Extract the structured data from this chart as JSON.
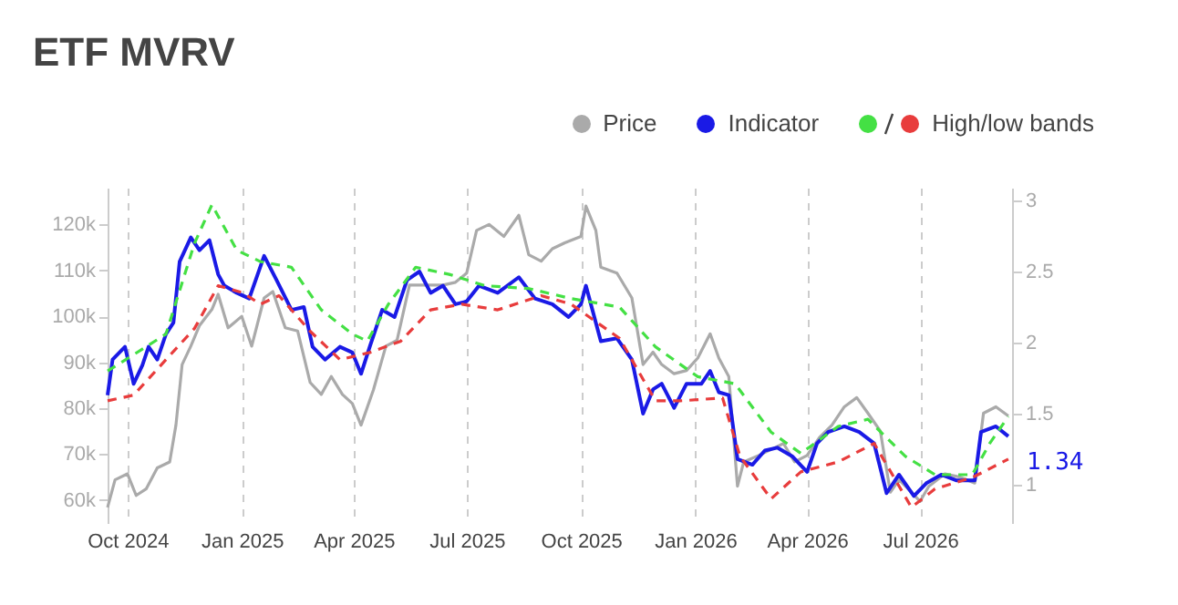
{
  "chart_data": {
    "type": "line",
    "title": "ETF MVRV",
    "xlim": [
      "2024-09-15",
      "2026-09-13"
    ],
    "xticks": [
      {
        "value": "2024-10-01",
        "label": "Oct 2024"
      },
      {
        "value": "2025-01-01",
        "label": "Jan 2025"
      },
      {
        "value": "2025-04-01",
        "label": "Apr 2025"
      },
      {
        "value": "2025-07-01",
        "label": "Jul 2025"
      },
      {
        "value": "2025-10-01",
        "label": "Oct 2025"
      },
      {
        "value": "2026-01-01",
        "label": "Jan 2026"
      },
      {
        "value": "2026-04-01",
        "label": "Apr 2026"
      },
      {
        "value": "2026-07-01",
        "label": "Jul 2026"
      }
    ],
    "ylim": [
      55000,
      128000
    ],
    "yticks": [
      {
        "value": 60000,
        "label": "60k"
      },
      {
        "value": 70000,
        "label": "70k"
      },
      {
        "value": 80000,
        "label": "80k"
      },
      {
        "value": 90000,
        "label": "90k"
      },
      {
        "value": 100000,
        "label": "100k"
      },
      {
        "value": 110000,
        "label": "110k"
      },
      {
        "value": 120000,
        "label": "120k"
      }
    ],
    "y2lim": [
      0.73,
      3.09
    ],
    "y2ticks": [
      1,
      1.5,
      2,
      2.5,
      3
    ],
    "grid": "x",
    "legend": "top right",
    "series": [
      {
        "name": "Price",
        "color": "#aaaaaa",
        "x": [
          "2024-09-15",
          "2024-09-21",
          "2024-10-01",
          "2024-10-08",
          "2024-10-16",
          "2024-10-25",
          "2024-11-04",
          "2024-11-09",
          "2024-11-14",
          "2024-11-21",
          "2024-11-28",
          "2024-12-08",
          "2024-12-13",
          "2024-12-21",
          "2025-01-01",
          "2025-01-09",
          "2025-01-19",
          "2025-01-26",
          "2025-02-05",
          "2025-02-15",
          "2025-02-25",
          "2025-03-06",
          "2025-03-14",
          "2025-03-23",
          "2025-03-31",
          "2025-04-07",
          "2025-04-17",
          "2025-04-27",
          "2025-05-06",
          "2025-05-16",
          "2025-05-28",
          "2025-06-12",
          "2025-06-22",
          "2025-07-01",
          "2025-07-09",
          "2025-07-19",
          "2025-07-31",
          "2025-08-12",
          "2025-08-20",
          "2025-08-30",
          "2025-09-08",
          "2025-09-18",
          "2025-10-01",
          "2025-10-05",
          "2025-10-13",
          "2025-10-17",
          "2025-10-30",
          "2025-11-11",
          "2025-11-20",
          "2025-11-28",
          "2025-12-05",
          "2025-12-15",
          "2025-12-25",
          "2026-01-03",
          "2026-01-13",
          "2026-01-20",
          "2026-01-28",
          "2026-02-04",
          "2026-02-09",
          "2026-02-21",
          "2026-03-03",
          "2026-03-13",
          "2026-03-22",
          "2026-04-01",
          "2026-04-11",
          "2026-04-21",
          "2026-05-01",
          "2026-05-11",
          "2026-05-20",
          "2026-05-30",
          "2026-06-07",
          "2026-06-14",
          "2026-06-24",
          "2026-07-01",
          "2026-07-08",
          "2026-07-21",
          "2026-08-02",
          "2026-08-14",
          "2026-08-21",
          "2026-08-31",
          "2026-09-10"
        ],
        "values": [
          58400,
          64400,
          65700,
          61000,
          62400,
          67000,
          68300,
          76300,
          89500,
          93500,
          98000,
          101500,
          104800,
          97500,
          100000,
          93500,
          104000,
          105400,
          97500,
          96800,
          85600,
          83000,
          86900,
          83000,
          81000,
          76300,
          84000,
          93500,
          94800,
          106800,
          106800,
          106800,
          107400,
          109400,
          118700,
          120000,
          117400,
          122000,
          113400,
          112000,
          114700,
          116000,
          117400,
          124000,
          118700,
          110700,
          109400,
          104000,
          89500,
          92200,
          89500,
          87500,
          88200,
          90900,
          96200,
          90900,
          86900,
          63000,
          68300,
          69700,
          71000,
          72300,
          68300,
          69700,
          73600,
          76300,
          80300,
          82300,
          78900,
          75000,
          61700,
          64400,
          61700,
          59700,
          63000,
          65700,
          65000,
          63700,
          78900,
          80300,
          78300
        ]
      },
      {
        "name": "Indicator",
        "color": "#1a1ae6",
        "axis": "y2",
        "x": [
          "2024-09-15",
          "2024-09-19",
          "2024-09-29",
          "2024-10-06",
          "2024-10-13",
          "2024-10-18",
          "2024-10-25",
          "2024-11-01",
          "2024-11-07",
          "2024-11-12",
          "2024-11-21",
          "2024-11-28",
          "2024-12-06",
          "2024-12-13",
          "2024-12-18",
          "2024-12-28",
          "2025-01-07",
          "2025-01-19",
          "2025-01-29",
          "2025-02-10",
          "2025-02-20",
          "2025-02-27",
          "2025-03-09",
          "2025-03-21",
          "2025-03-31",
          "2025-04-07",
          "2025-04-14",
          "2025-04-24",
          "2025-05-04",
          "2025-05-14",
          "2025-05-24",
          "2025-06-02",
          "2025-06-12",
          "2025-06-22",
          "2025-07-01",
          "2025-07-11",
          "2025-07-26",
          "2025-08-12",
          "2025-08-25",
          "2025-09-08",
          "2025-09-21",
          "2025-10-01",
          "2025-10-05",
          "2025-10-17",
          "2025-10-30",
          "2025-11-11",
          "2025-11-20",
          "2025-11-28",
          "2025-12-05",
          "2025-12-15",
          "2025-12-25",
          "2026-01-06",
          "2026-01-13",
          "2026-01-20",
          "2026-01-28",
          "2026-02-04",
          "2026-02-16",
          "2026-02-26",
          "2026-03-08",
          "2026-03-20",
          "2026-04-01",
          "2026-04-09",
          "2026-04-18",
          "2026-05-01",
          "2026-05-13",
          "2026-05-25",
          "2026-06-04",
          "2026-06-14",
          "2026-06-26",
          "2026-07-06",
          "2026-07-18",
          "2026-07-30",
          "2026-08-14",
          "2026-08-19",
          "2026-08-31",
          "2026-09-10"
        ],
        "values": [
          1.63,
          1.88,
          1.97,
          1.71,
          1.84,
          1.97,
          1.88,
          2.06,
          2.14,
          2.57,
          2.74,
          2.65,
          2.72,
          2.48,
          2.4,
          2.35,
          2.31,
          2.61,
          2.44,
          2.23,
          2.25,
          1.97,
          1.88,
          1.97,
          1.93,
          1.78,
          1.97,
          2.23,
          2.18,
          2.44,
          2.5,
          2.35,
          2.4,
          2.27,
          2.29,
          2.4,
          2.35,
          2.46,
          2.31,
          2.27,
          2.18,
          2.27,
          2.4,
          2.01,
          2.03,
          1.88,
          1.5,
          1.67,
          1.71,
          1.54,
          1.71,
          1.71,
          1.8,
          1.65,
          1.63,
          1.18,
          1.14,
          1.24,
          1.26,
          1.2,
          1.09,
          1.29,
          1.37,
          1.41,
          1.37,
          1.29,
          0.94,
          1.07,
          0.92,
          1.01,
          1.07,
          1.03,
          1.03,
          1.37,
          1.41,
          1.34
        ],
        "value_labels": [
          null,
          null,
          null,
          null,
          null,
          null,
          null,
          null,
          null,
          null,
          null,
          null,
          null,
          null,
          null,
          null,
          null,
          null,
          null,
          null,
          null,
          null,
          null,
          null,
          null,
          null,
          null,
          null,
          null,
          null,
          null,
          null,
          null,
          null,
          null,
          null,
          null,
          null,
          null,
          null,
          null,
          null,
          null,
          null,
          null,
          null,
          null,
          null,
          null,
          null,
          null,
          null,
          null,
          null,
          null,
          null,
          null,
          null,
          null,
          null,
          null,
          null,
          null,
          null,
          null,
          null,
          null,
          null,
          null,
          null,
          null,
          null,
          null,
          null,
          null,
          "1.34"
        ]
      },
      {
        "color": "#44e044",
        "axis": "y2",
        "line_style": "dashed",
        "x": [
          "2024-09-15",
          "2024-10-16",
          "2024-11-01",
          "2024-11-24",
          "2024-12-08",
          "2024-12-28",
          "2025-01-16",
          "2025-02-10",
          "2025-03-06",
          "2025-03-31",
          "2025-04-12",
          "2025-04-29",
          "2025-05-21",
          "2025-06-17",
          "2025-07-16",
          "2025-08-20",
          "2025-09-23",
          "2025-11-01",
          "2025-11-30",
          "2026-01-03",
          "2026-02-02",
          "2026-03-03",
          "2026-03-27",
          "2026-04-26",
          "2026-05-20",
          "2026-06-19",
          "2026-07-13",
          "2026-08-12",
          "2026-08-26",
          "2026-09-10"
        ],
        "values": [
          1.8,
          1.97,
          2.06,
          2.7,
          2.97,
          2.65,
          2.57,
          2.53,
          2.23,
          2.06,
          2.01,
          2.27,
          2.53,
          2.48,
          2.4,
          2.38,
          2.31,
          2.25,
          1.97,
          1.76,
          1.71,
          1.37,
          1.22,
          1.41,
          1.46,
          1.2,
          1.07,
          1.07,
          1.29,
          1.48
        ]
      },
      {
        "name": "High/low bands",
        "color": "#e83c3c",
        "axis": "y2",
        "line_style": "dashed",
        "x": [
          "2024-09-15",
          "2024-10-06",
          "2024-11-01",
          "2024-11-24",
          "2024-12-13",
          "2025-01-02",
          "2025-01-16",
          "2025-01-31",
          "2025-02-25",
          "2025-03-21",
          "2025-04-14",
          "2025-05-09",
          "2025-06-02",
          "2025-06-27",
          "2025-07-26",
          "2025-08-30",
          "2025-09-23",
          "2025-11-01",
          "2025-11-30",
          "2025-12-20",
          "2026-01-23",
          "2026-02-06",
          "2026-03-03",
          "2026-03-27",
          "2026-04-26",
          "2026-05-25",
          "2026-06-24",
          "2026-07-13",
          "2026-08-12",
          "2026-09-10"
        ],
        "values": [
          1.59,
          1.63,
          1.88,
          2.1,
          2.4,
          2.35,
          2.27,
          2.33,
          2.08,
          1.88,
          1.93,
          2.01,
          2.23,
          2.27,
          2.23,
          2.33,
          2.27,
          2.03,
          1.59,
          1.59,
          1.61,
          1.2,
          0.9,
          1.09,
          1.16,
          1.29,
          0.84,
          0.97,
          1.05,
          1.18
        ]
      }
    ]
  }
}
